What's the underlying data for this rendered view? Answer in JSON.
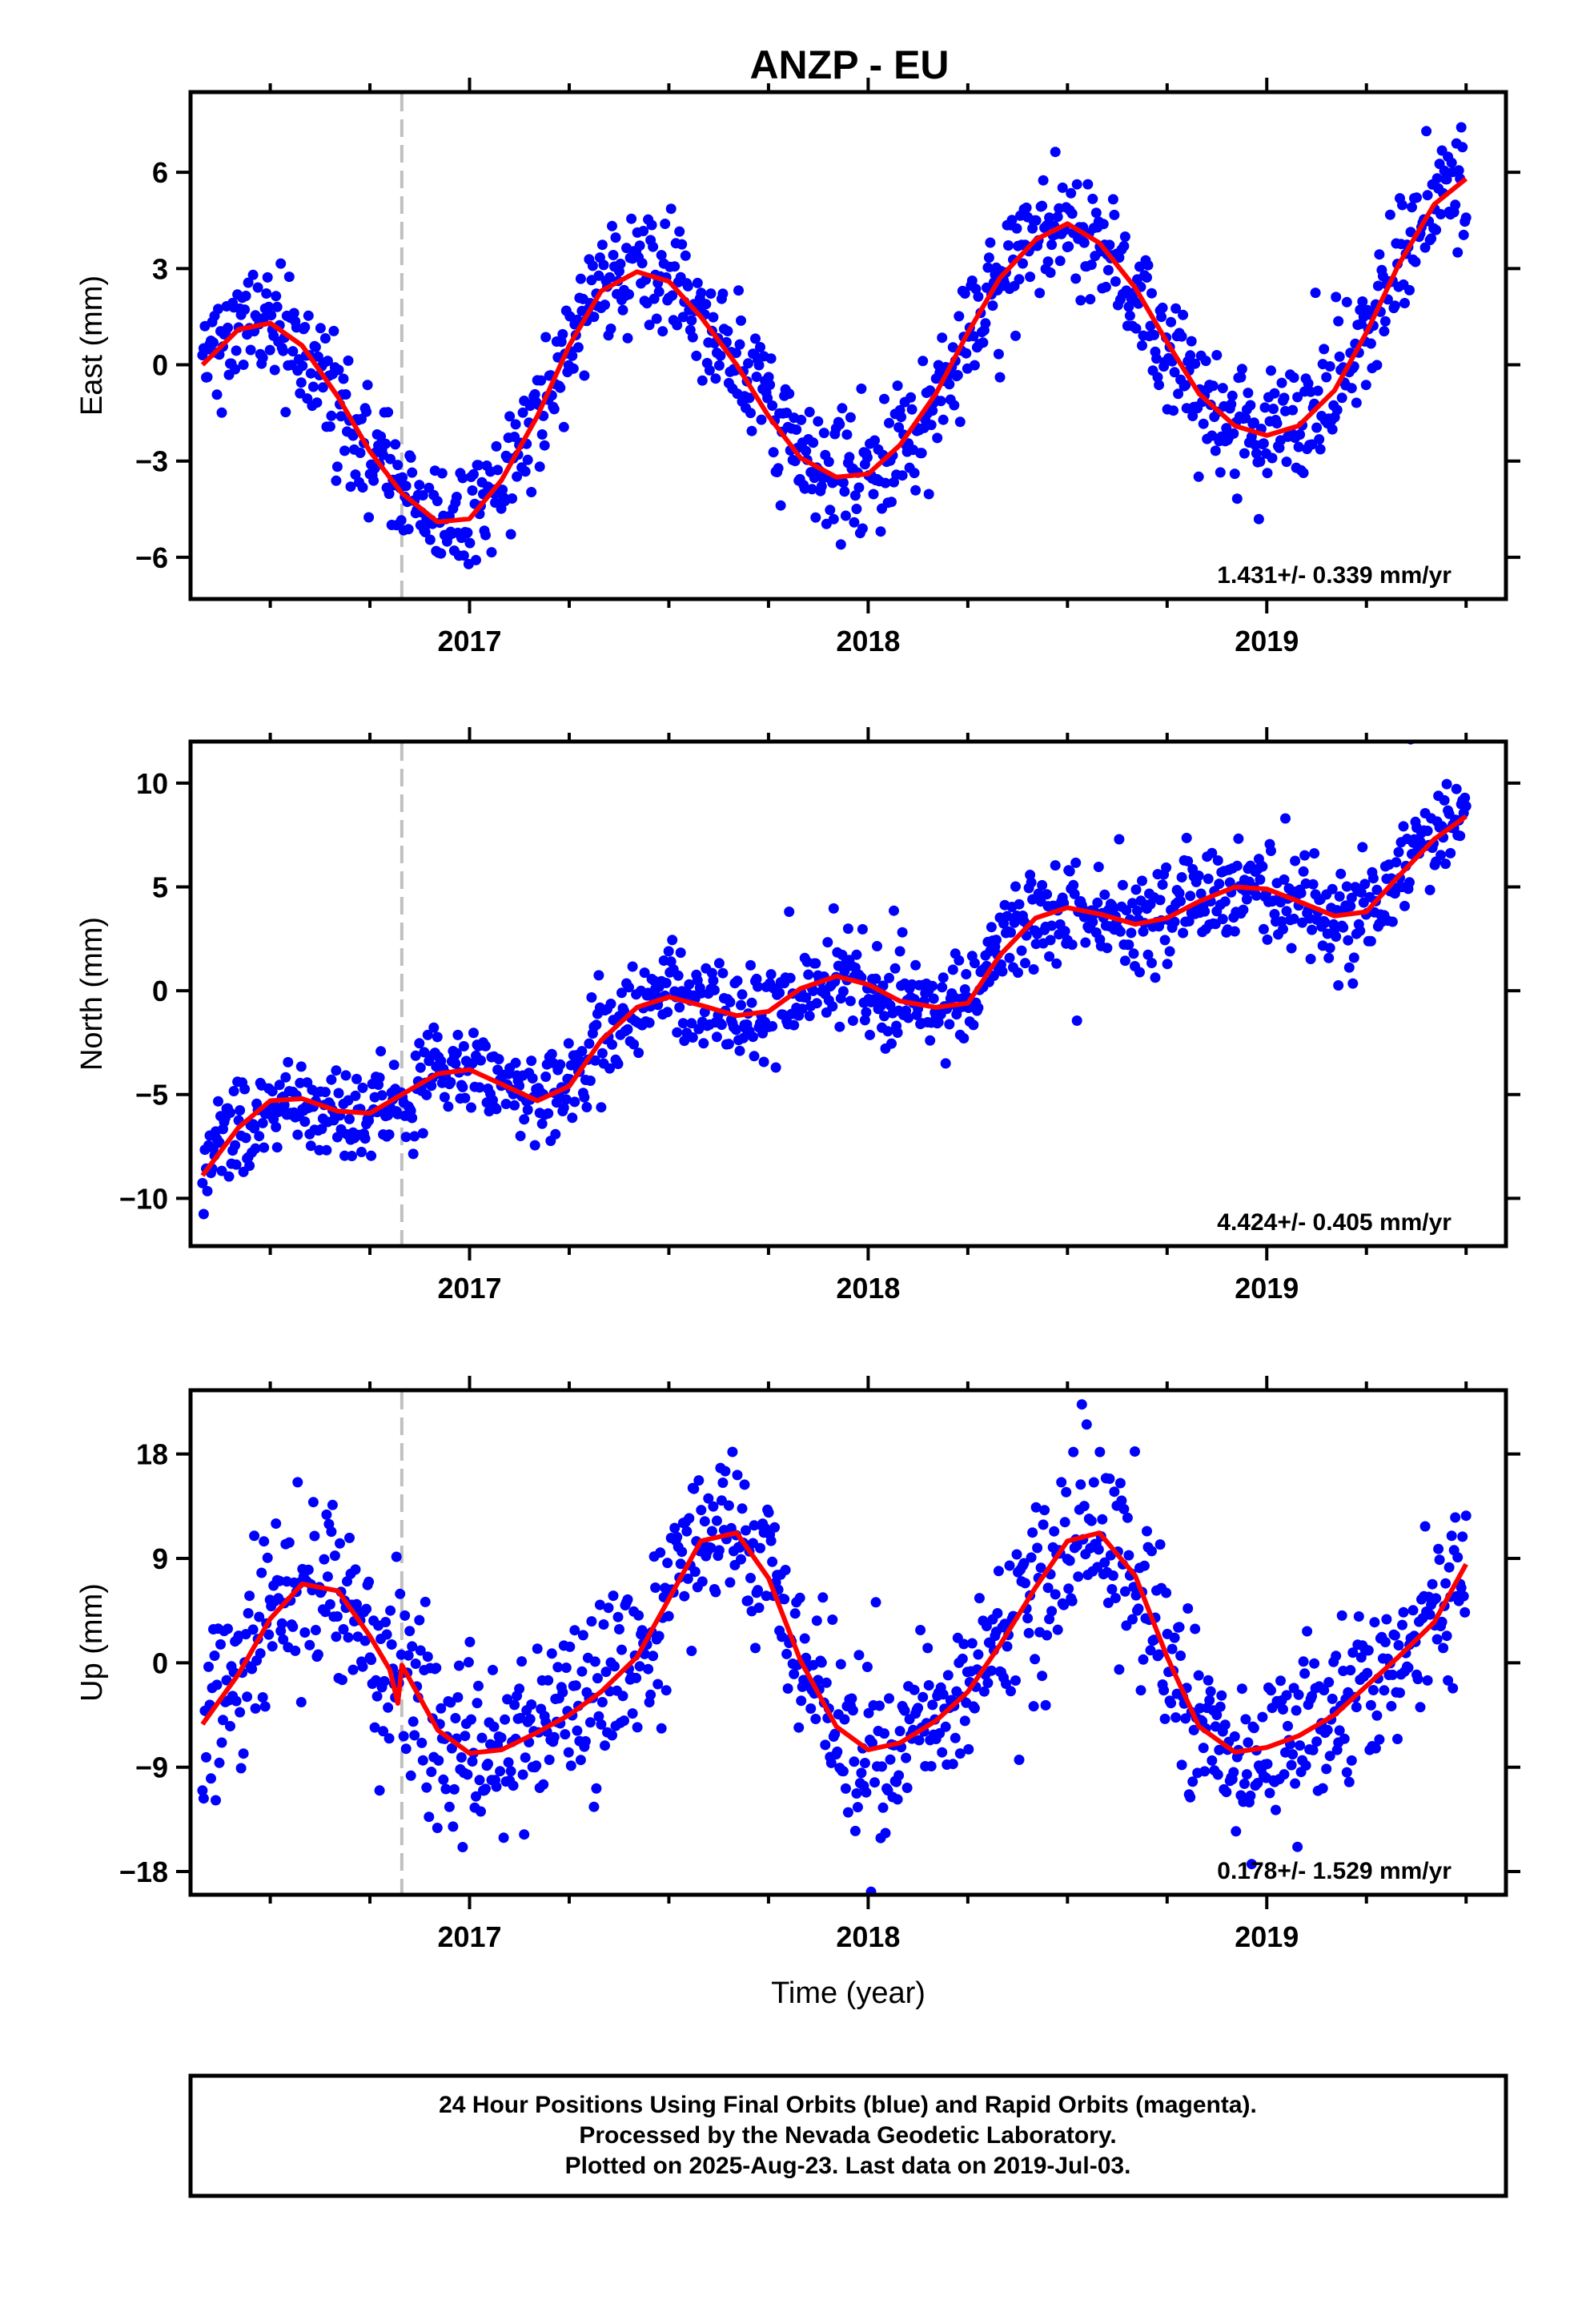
{
  "title": "ANZP - EU",
  "footer": {
    "lines": [
      "24 Hour Positions Using Final Orbits (blue) and Rapid Orbits (magenta).",
      "Processed by the Nevada Geodetic Laboratory.",
      "Plotted on 2025-Aug-23. Last data on 2019-Jul-03."
    ]
  },
  "colors": {
    "points": "#0000ff",
    "fit": "#ff0000",
    "event_line": "#c0c0c0",
    "axis": "#000000"
  },
  "chart_data": [
    {
      "type": "scatter",
      "ylabel": "East (mm)",
      "xlabel": "",
      "xlim": [
        2016.3,
        2019.6
      ],
      "ylim": [
        -7.3,
        8.5
      ],
      "yticks": [
        -6,
        -3,
        0,
        3,
        6
      ],
      "ytick_labels": [
        "−6",
        "−3",
        "0",
        "3",
        "6"
      ],
      "xticks": [
        2017,
        2018,
        2019
      ],
      "xtick_labels": [
        "2017",
        "2018",
        "2019"
      ],
      "event_line_x": 2016.83,
      "rate_label": "1.431+/- 0.339 mm/yr",
      "fit_curve": {
        "x": [
          2016.33,
          2016.42,
          2016.5,
          2016.58,
          2016.67,
          2016.75,
          2016.83,
          2016.92,
          2017.0,
          2017.08,
          2017.17,
          2017.25,
          2017.33,
          2017.42,
          2017.5,
          2017.58,
          2017.67,
          2017.75,
          2017.83,
          2017.92,
          2018.0,
          2018.08,
          2018.17,
          2018.25,
          2018.33,
          2018.42,
          2018.5,
          2018.58,
          2018.67,
          2018.75,
          2018.83,
          2018.92,
          2019.0,
          2019.08,
          2019.17,
          2019.25,
          2019.33,
          2019.42,
          2019.5
        ],
        "y": [
          0.0,
          1.1,
          1.3,
          0.6,
          -1.0,
          -2.7,
          -4.0,
          -4.9,
          -4.8,
          -3.6,
          -1.6,
          0.6,
          2.3,
          2.9,
          2.6,
          1.5,
          0.0,
          -1.6,
          -2.9,
          -3.5,
          -3.4,
          -2.5,
          -0.9,
          1.0,
          2.7,
          3.9,
          4.4,
          3.8,
          2.4,
          0.7,
          -0.9,
          -1.9,
          -2.2,
          -1.9,
          -0.8,
          1.0,
          3.1,
          5.0,
          5.8
        ]
      },
      "series": [
        {
          "name": "",
          "sample_count": 1050,
          "noise_sd": 0.95
        }
      ]
    },
    {
      "type": "scatter",
      "ylabel": "North (mm)",
      "xlabel": "",
      "xlim": [
        2016.3,
        2019.6
      ],
      "ylim": [
        -12.3,
        12.0
      ],
      "yticks": [
        -10,
        -5,
        0,
        5,
        10
      ],
      "ytick_labels": [
        "−10",
        "−5",
        "0",
        "5",
        "10"
      ],
      "xticks": [
        2017,
        2018,
        2019
      ],
      "xtick_labels": [
        "2017",
        "2018",
        "2019"
      ],
      "event_line_x": 2016.83,
      "rate_label": "4.424+/- 0.405 mm/yr",
      "fit_curve": {
        "x": [
          2016.33,
          2016.42,
          2016.5,
          2016.58,
          2016.67,
          2016.75,
          2016.83,
          2016.92,
          2017.0,
          2017.08,
          2017.17,
          2017.25,
          2017.33,
          2017.42,
          2017.5,
          2017.58,
          2017.67,
          2017.75,
          2017.83,
          2017.92,
          2018.0,
          2018.08,
          2018.17,
          2018.25,
          2018.33,
          2018.42,
          2018.5,
          2018.58,
          2018.67,
          2018.75,
          2018.83,
          2018.92,
          2019.0,
          2019.08,
          2019.17,
          2019.25,
          2019.33,
          2019.42,
          2019.5
        ],
        "y": [
          -8.9,
          -6.6,
          -5.3,
          -5.2,
          -5.8,
          -5.9,
          -5.0,
          -4.0,
          -3.8,
          -4.5,
          -5.3,
          -4.6,
          -2.4,
          -0.8,
          -0.3,
          -0.7,
          -1.2,
          -1.0,
          0.1,
          0.7,
          0.3,
          -0.5,
          -0.8,
          -0.6,
          1.7,
          3.5,
          4.0,
          3.7,
          3.2,
          3.5,
          4.3,
          5.0,
          4.9,
          4.3,
          3.6,
          3.8,
          5.5,
          7.3,
          8.4
        ]
      },
      "series": [
        {
          "name": "",
          "sample_count": 1050,
          "noise_sd": 1.15
        }
      ]
    },
    {
      "type": "scatter",
      "ylabel": "Up (mm)",
      "xlabel": "Time (year)",
      "xlim": [
        2016.3,
        2019.6
      ],
      "ylim": [
        -20.0,
        23.5
      ],
      "yticks": [
        -18,
        -9,
        0,
        9,
        18
      ],
      "ytick_labels": [
        "−18",
        "−9",
        "0",
        "9",
        "18"
      ],
      "xticks": [
        2017,
        2018,
        2019
      ],
      "xtick_labels": [
        "2017",
        "2018",
        "2019"
      ],
      "event_line_x": 2016.83,
      "rate_label": "0.178+/- 1.529 mm/yr",
      "fit_curve": {
        "x": [
          2016.33,
          2016.42,
          2016.5,
          2016.58,
          2016.67,
          2016.75,
          2016.8,
          2016.82,
          2016.83,
          2016.92,
          2017.0,
          2017.08,
          2017.17,
          2017.25,
          2017.33,
          2017.42,
          2017.5,
          2017.58,
          2017.67,
          2017.75,
          2017.83,
          2017.92,
          2018.0,
          2018.08,
          2018.17,
          2018.25,
          2018.33,
          2018.42,
          2018.5,
          2018.58,
          2018.67,
          2018.75,
          2018.83,
          2018.92,
          2019.0,
          2019.08,
          2019.17,
          2019.25,
          2019.33,
          2019.42,
          2019.5
        ],
        "y": [
          -5.3,
          -1.0,
          3.8,
          6.8,
          6.2,
          2.3,
          -0.6,
          -3.5,
          -0.2,
          -5.8,
          -7.8,
          -7.5,
          -6.0,
          -4.5,
          -2.5,
          0.5,
          5.5,
          10.5,
          11.2,
          7.3,
          0.2,
          -5.5,
          -7.5,
          -6.9,
          -5.0,
          -2.5,
          1.5,
          6.5,
          10.5,
          11.2,
          7.5,
          0.5,
          -5.5,
          -7.7,
          -7.3,
          -6.3,
          -4.5,
          -2.0,
          0.5,
          3.5,
          8.5
        ]
      },
      "series": [
        {
          "name": "",
          "sample_count": 1050,
          "noise_sd": 3.8
        }
      ]
    }
  ]
}
